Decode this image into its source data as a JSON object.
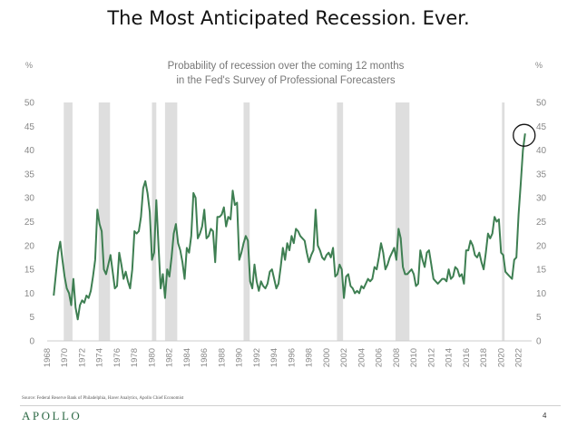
{
  "page": {
    "title": "The Most Anticipated Recession. Ever.",
    "source": "Source: Federal Reserve Bank of Philadelphia, Haver Analytics, Apollo Chief Economist",
    "logo": "APOLLO",
    "page_number": "4"
  },
  "colors": {
    "line": "#3e7f52",
    "recession_band": "#dedede",
    "axis_text": "#888888",
    "subtitle_text": "#777777",
    "title_text": "#111111",
    "highlight_circle": "#111111",
    "logo": "#2e6a46"
  },
  "chart_data": {
    "type": "line",
    "subtitle_line1": "Probability of recession over the coming 12 months",
    "subtitle_line2": "in the Fed's Survey of Professional Forecasters",
    "y_unit_left": "%",
    "y_unit_right": "%",
    "xlim": [
      1968,
      2023.5
    ],
    "ylim": [
      0,
      50
    ],
    "x_ticks": [
      "1968",
      "1970",
      "1972",
      "1974",
      "1976",
      "1978",
      "1980",
      "1982",
      "1984",
      "1986",
      "1988",
      "1990",
      "1992",
      "1994",
      "1996",
      "1998",
      "2000",
      "2002",
      "2004",
      "2006",
      "2008",
      "2010",
      "2012",
      "2014",
      "2016",
      "2018",
      "2020",
      "2022"
    ],
    "y_ticks": [
      0,
      5,
      10,
      15,
      20,
      25,
      30,
      35,
      40,
      45,
      50
    ],
    "grid": false,
    "recession_periods": [
      [
        1969.9,
        1970.9
      ],
      [
        1973.9,
        1975.2
      ],
      [
        1980.0,
        1980.5
      ],
      [
        1981.5,
        1982.9
      ],
      [
        1990.5,
        1991.2
      ],
      [
        2001.2,
        2001.9
      ],
      [
        2007.9,
        2009.5
      ],
      [
        2020.1,
        2020.4
      ]
    ],
    "highlight": {
      "x": 2022.75,
      "y": 43.5,
      "shape": "circle"
    },
    "series": [
      {
        "values": [
          [
            1968.75,
            9.5
          ],
          [
            1969.0,
            14.0
          ],
          [
            1969.25,
            18.5
          ],
          [
            1969.5,
            20.8
          ],
          [
            1969.75,
            17.0
          ],
          [
            1970.0,
            13.5
          ],
          [
            1970.25,
            11.0
          ],
          [
            1970.5,
            10.0
          ],
          [
            1970.75,
            7.5
          ],
          [
            1971.0,
            13.0
          ],
          [
            1971.25,
            7.0
          ],
          [
            1971.5,
            4.5
          ],
          [
            1971.75,
            7.5
          ],
          [
            1972.0,
            8.5
          ],
          [
            1972.25,
            8.0
          ],
          [
            1972.5,
            9.5
          ],
          [
            1972.75,
            9.0
          ],
          [
            1973.0,
            10.5
          ],
          [
            1973.25,
            13.5
          ],
          [
            1973.5,
            17.0
          ],
          [
            1973.75,
            27.5
          ],
          [
            1974.0,
            24.5
          ],
          [
            1974.25,
            23.0
          ],
          [
            1974.5,
            15.0
          ],
          [
            1974.75,
            14.0
          ],
          [
            1975.0,
            16.0
          ],
          [
            1975.25,
            18.0
          ],
          [
            1975.5,
            14.5
          ],
          [
            1975.75,
            11.0
          ],
          [
            1976.0,
            11.5
          ],
          [
            1976.25,
            18.5
          ],
          [
            1976.5,
            16.0
          ],
          [
            1976.75,
            13.0
          ],
          [
            1977.0,
            14.5
          ],
          [
            1977.25,
            12.5
          ],
          [
            1977.5,
            11.0
          ],
          [
            1977.75,
            15.0
          ],
          [
            1978.0,
            23.0
          ],
          [
            1978.25,
            22.5
          ],
          [
            1978.5,
            23.0
          ],
          [
            1978.75,
            26.0
          ],
          [
            1979.0,
            32.0
          ],
          [
            1979.25,
            33.5
          ],
          [
            1979.5,
            31.0
          ],
          [
            1979.75,
            27.0
          ],
          [
            1980.0,
            17.0
          ],
          [
            1980.25,
            18.5
          ],
          [
            1980.5,
            29.5
          ],
          [
            1980.75,
            20.0
          ],
          [
            1981.0,
            11.0
          ],
          [
            1981.25,
            14.0
          ],
          [
            1981.5,
            9.0
          ],
          [
            1981.75,
            15.0
          ],
          [
            1982.0,
            13.5
          ],
          [
            1982.25,
            17.5
          ],
          [
            1982.5,
            22.5
          ],
          [
            1982.75,
            24.5
          ],
          [
            1983.0,
            20.5
          ],
          [
            1983.25,
            19.0
          ],
          [
            1983.5,
            16.5
          ],
          [
            1983.75,
            13.0
          ],
          [
            1984.0,
            19.5
          ],
          [
            1984.25,
            18.5
          ],
          [
            1984.5,
            22.0
          ],
          [
            1984.75,
            31.0
          ],
          [
            1985.0,
            30.0
          ],
          [
            1985.25,
            21.5
          ],
          [
            1985.5,
            22.5
          ],
          [
            1985.75,
            24.0
          ],
          [
            1986.0,
            27.5
          ],
          [
            1986.25,
            21.5
          ],
          [
            1986.5,
            22.0
          ],
          [
            1986.75,
            23.5
          ],
          [
            1987.0,
            23.0
          ],
          [
            1987.25,
            16.5
          ],
          [
            1987.5,
            26.0
          ],
          [
            1987.75,
            26.0
          ],
          [
            1988.0,
            26.5
          ],
          [
            1988.25,
            28.0
          ],
          [
            1988.5,
            24.0
          ],
          [
            1988.75,
            26.0
          ],
          [
            1989.0,
            25.5
          ],
          [
            1989.25,
            31.5
          ],
          [
            1989.5,
            28.5
          ],
          [
            1989.75,
            29.0
          ],
          [
            1990.0,
            17.0
          ],
          [
            1990.25,
            18.5
          ],
          [
            1990.5,
            20.5
          ],
          [
            1990.75,
            22.0
          ],
          [
            1991.0,
            21.0
          ],
          [
            1991.25,
            12.5
          ],
          [
            1991.5,
            11.0
          ],
          [
            1991.75,
            16.0
          ],
          [
            1992.0,
            12.5
          ],
          [
            1992.25,
            10.5
          ],
          [
            1992.5,
            12.5
          ],
          [
            1992.75,
            11.5
          ],
          [
            1993.0,
            11.0
          ],
          [
            1993.25,
            12.0
          ],
          [
            1993.5,
            14.5
          ],
          [
            1993.75,
            15.0
          ],
          [
            1994.0,
            13.0
          ],
          [
            1994.25,
            11.0
          ],
          [
            1994.5,
            12.0
          ],
          [
            1994.75,
            15.5
          ],
          [
            1995.0,
            19.5
          ],
          [
            1995.25,
            17.0
          ],
          [
            1995.5,
            20.5
          ],
          [
            1995.75,
            19.0
          ],
          [
            1996.0,
            22.0
          ],
          [
            1996.25,
            20.5
          ],
          [
            1996.5,
            23.5
          ],
          [
            1996.75,
            23.0
          ],
          [
            1997.0,
            22.0
          ],
          [
            1997.25,
            21.5
          ],
          [
            1997.5,
            21.0
          ],
          [
            1997.75,
            18.5
          ],
          [
            1998.0,
            16.5
          ],
          [
            1998.25,
            18.0
          ],
          [
            1998.5,
            19.0
          ],
          [
            1998.75,
            27.5
          ],
          [
            1999.0,
            20.0
          ],
          [
            1999.25,
            19.0
          ],
          [
            1999.5,
            17.5
          ],
          [
            1999.75,
            17.0
          ],
          [
            2000.0,
            18.0
          ],
          [
            2000.25,
            18.5
          ],
          [
            2000.5,
            17.5
          ],
          [
            2000.75,
            19.5
          ],
          [
            2001.0,
            13.5
          ],
          [
            2001.25,
            14.0
          ],
          [
            2001.5,
            16.0
          ],
          [
            2001.75,
            15.0
          ],
          [
            2002.0,
            9.0
          ],
          [
            2002.25,
            13.5
          ],
          [
            2002.5,
            14.0
          ],
          [
            2002.75,
            11.5
          ],
          [
            2003.0,
            11.0
          ],
          [
            2003.25,
            10.0
          ],
          [
            2003.5,
            10.5
          ],
          [
            2003.75,
            10.0
          ],
          [
            2004.0,
            11.5
          ],
          [
            2004.25,
            11.0
          ],
          [
            2004.5,
            12.0
          ],
          [
            2004.75,
            13.0
          ],
          [
            2005.0,
            12.5
          ],
          [
            2005.25,
            13.0
          ],
          [
            2005.5,
            15.5
          ],
          [
            2005.75,
            15.0
          ],
          [
            2006.0,
            17.5
          ],
          [
            2006.25,
            20.5
          ],
          [
            2006.5,
            18.5
          ],
          [
            2006.75,
            15.0
          ],
          [
            2007.0,
            16.0
          ],
          [
            2007.25,
            17.5
          ],
          [
            2007.5,
            18.5
          ],
          [
            2007.75,
            19.5
          ],
          [
            2008.0,
            17.0
          ],
          [
            2008.25,
            23.5
          ],
          [
            2008.5,
            21.5
          ],
          [
            2008.75,
            15.5
          ],
          [
            2009.0,
            14.0
          ],
          [
            2009.25,
            14.0
          ],
          [
            2009.5,
            14.5
          ],
          [
            2009.75,
            15.0
          ],
          [
            2010.0,
            14.0
          ],
          [
            2010.25,
            11.5
          ],
          [
            2010.5,
            12.0
          ],
          [
            2010.75,
            19.0
          ],
          [
            2011.0,
            17.0
          ],
          [
            2011.25,
            15.5
          ],
          [
            2011.5,
            18.5
          ],
          [
            2011.75,
            19.0
          ],
          [
            2012.0,
            16.0
          ],
          [
            2012.25,
            13.0
          ],
          [
            2012.5,
            12.5
          ],
          [
            2012.75,
            12.0
          ],
          [
            2013.0,
            12.5
          ],
          [
            2013.25,
            13.0
          ],
          [
            2013.5,
            13.0
          ],
          [
            2013.75,
            12.5
          ],
          [
            2014.0,
            15.0
          ],
          [
            2014.25,
            13.0
          ],
          [
            2014.5,
            13.5
          ],
          [
            2014.75,
            15.5
          ],
          [
            2015.0,
            15.0
          ],
          [
            2015.25,
            13.5
          ],
          [
            2015.5,
            14.0
          ],
          [
            2015.75,
            12.0
          ],
          [
            2016.0,
            19.0
          ],
          [
            2016.25,
            19.0
          ],
          [
            2016.5,
            21.0
          ],
          [
            2016.75,
            20.0
          ],
          [
            2017.0,
            18.0
          ],
          [
            2017.25,
            17.5
          ],
          [
            2017.5,
            18.5
          ],
          [
            2017.75,
            16.5
          ],
          [
            2018.0,
            15.0
          ],
          [
            2018.25,
            18.5
          ],
          [
            2018.5,
            22.5
          ],
          [
            2018.75,
            21.5
          ],
          [
            2019.0,
            22.5
          ],
          [
            2019.25,
            26.0
          ],
          [
            2019.5,
            25.0
          ],
          [
            2019.75,
            25.5
          ],
          [
            2020.0,
            18.5
          ],
          [
            2020.25,
            18.0
          ],
          [
            2020.5,
            14.5
          ],
          [
            2020.75,
            14.0
          ],
          [
            2021.0,
            13.5
          ],
          [
            2021.25,
            13.0
          ],
          [
            2021.5,
            17.0
          ],
          [
            2021.75,
            17.5
          ],
          [
            2022.0,
            26.5
          ],
          [
            2022.25,
            33.0
          ],
          [
            2022.5,
            40.0
          ],
          [
            2022.75,
            43.5
          ]
        ]
      }
    ]
  }
}
